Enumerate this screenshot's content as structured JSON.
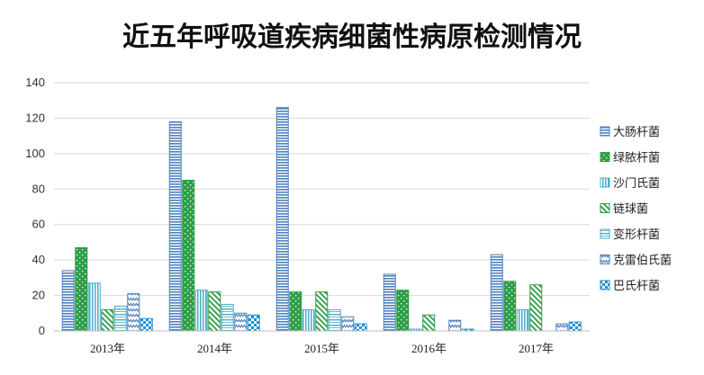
{
  "chart_data": {
    "type": "bar",
    "title": "近五年呼吸道疾病细菌性病原检测情况",
    "categories": [
      "2013年",
      "2014年",
      "2015年",
      "2016年",
      "2017年"
    ],
    "ylim": [
      0,
      140
    ],
    "yticks": [
      0,
      20,
      40,
      60,
      80,
      100,
      120,
      140
    ],
    "grid": true,
    "legend_position": "right",
    "series": [
      {
        "name": "大肠杆菌",
        "color": "#4f81bd",
        "pattern": "hlines",
        "values": [
          34,
          118,
          126,
          32,
          43
        ]
      },
      {
        "name": "绿脓杆菌",
        "color": "#2e9e48",
        "pattern": "dense",
        "values": [
          47,
          85,
          22,
          23,
          28
        ]
      },
      {
        "name": "沙门氏菌",
        "color": "#4bacc6",
        "pattern": "vlines",
        "values": [
          27,
          23,
          12,
          1,
          12
        ]
      },
      {
        "name": "链球菌",
        "color": "#2e9e48",
        "pattern": "diag",
        "values": [
          12,
          22,
          22,
          9,
          26
        ]
      },
      {
        "name": "变形杆菌",
        "color": "#4bacc6",
        "pattern": "hlines2",
        "values": [
          14,
          15,
          12,
          0,
          0
        ]
      },
      {
        "name": "克雷伯氏菌",
        "color": "#4f81bd",
        "pattern": "zigzag",
        "values": [
          21,
          10,
          8,
          6,
          4
        ]
      },
      {
        "name": "巴氏杆菌",
        "color": "#1f8fd0",
        "pattern": "checker",
        "values": [
          7,
          9,
          4,
          1,
          5
        ]
      }
    ]
  }
}
